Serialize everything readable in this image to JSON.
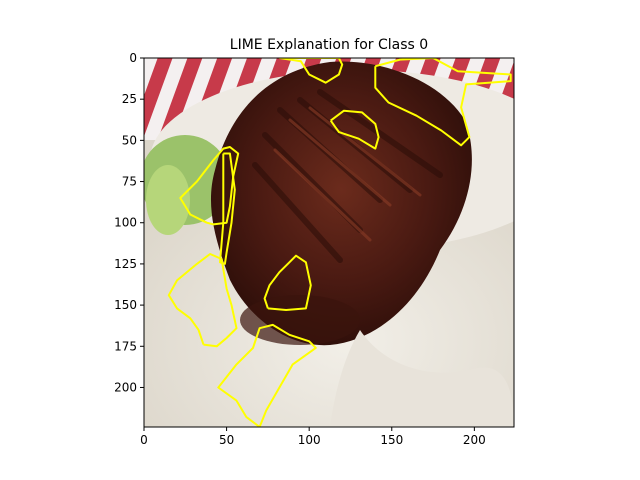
{
  "chart_data": {
    "type": "image",
    "title": "LIME Explanation for Class 0",
    "xlabel": "",
    "ylabel": "",
    "xlim": [
      0,
      224
    ],
    "ylim": [
      224,
      0
    ],
    "x_ticks": [
      0,
      50,
      100,
      150,
      200
    ],
    "y_ticks": [
      0,
      25,
      50,
      75,
      100,
      125,
      150,
      175,
      200
    ],
    "image_content": "food photo: glazed roasted meat on white rice with lettuce, red and white checkered cloth in background",
    "boundary_color": "#ffff00",
    "superpixel_boundaries": [
      {
        "name": "left-meat-edge",
        "points": [
          [
            38,
            100
          ],
          [
            28,
            95
          ],
          [
            22,
            85
          ],
          [
            32,
            75
          ],
          [
            42,
            62
          ],
          [
            48,
            55
          ],
          [
            52,
            54
          ],
          [
            57,
            58
          ],
          [
            54,
            72
          ],
          [
            52,
            90
          ],
          [
            50,
            100
          ],
          [
            42,
            101
          ]
        ]
      },
      {
        "name": "left-rice-region",
        "points": [
          [
            36,
            174
          ],
          [
            33,
            165
          ],
          [
            28,
            158
          ],
          [
            20,
            152
          ],
          [
            15,
            144
          ],
          [
            20,
            135
          ],
          [
            32,
            125
          ],
          [
            40,
            119
          ],
          [
            47,
            122
          ],
          [
            50,
            140
          ],
          [
            53,
            150
          ],
          [
            56,
            164
          ],
          [
            50,
            170
          ],
          [
            44,
            175
          ]
        ]
      },
      {
        "name": "center-meat-region",
        "points": [
          [
            75,
            152
          ],
          [
            73,
            146
          ],
          [
            76,
            138
          ],
          [
            82,
            130
          ],
          [
            88,
            124
          ],
          [
            92,
            120
          ],
          [
            98,
            124
          ],
          [
            101,
            138
          ],
          [
            98,
            152
          ],
          [
            86,
            153
          ]
        ]
      },
      {
        "name": "upper-meat-region",
        "points": [
          [
            113,
            38
          ],
          [
            121,
            32
          ],
          [
            132,
            33
          ],
          [
            140,
            40
          ],
          [
            142,
            48
          ],
          [
            140,
            55
          ],
          [
            130,
            49
          ],
          [
            118,
            45
          ]
        ]
      },
      {
        "name": "top-right-region",
        "points": [
          [
            140,
            5
          ],
          [
            155,
            1
          ],
          [
            175,
            0
          ],
          [
            190,
            8
          ],
          [
            222,
            10
          ],
          [
            222,
            14
          ],
          [
            195,
            16
          ],
          [
            192,
            30
          ],
          [
            197,
            48
          ],
          [
            192,
            53
          ],
          [
            180,
            44
          ],
          [
            165,
            35
          ],
          [
            148,
            27
          ],
          [
            140,
            18
          ]
        ]
      },
      {
        "name": "top-center-region",
        "points": [
          [
            82,
            0
          ],
          [
            95,
            2
          ],
          [
            100,
            10
          ],
          [
            110,
            15
          ],
          [
            118,
            10
          ],
          [
            120,
            4
          ],
          [
            118,
            0
          ]
        ]
      },
      {
        "name": "lower-rice-region",
        "points": [
          [
            70,
            224
          ],
          [
            62,
            218
          ],
          [
            56,
            208
          ],
          [
            45,
            200
          ],
          [
            56,
            186
          ],
          [
            66,
            176
          ],
          [
            70,
            164
          ],
          [
            78,
            162
          ],
          [
            88,
            168
          ],
          [
            100,
            172
          ],
          [
            104,
            176
          ],
          [
            90,
            186
          ],
          [
            82,
            200
          ],
          [
            74,
            214
          ]
        ]
      },
      {
        "name": "center-stripe-region",
        "points": [
          [
            48,
            58
          ],
          [
            52,
            58
          ],
          [
            55,
            80
          ],
          [
            53,
            100
          ],
          [
            50,
            118
          ],
          [
            49,
            125
          ],
          [
            46,
            124
          ],
          [
            48,
            100
          ]
        ]
      }
    ]
  }
}
